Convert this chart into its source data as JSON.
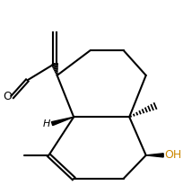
{
  "figsize": [
    2.04,
    2.16
  ],
  "dpi": 100,
  "bg_color": "#ffffff",
  "line_color": "#000000",
  "bond_lw": 1.5,
  "label_O": "O",
  "label_H": "H",
  "label_OH": "OH",
  "label_fontsize": 9,
  "oh_color": "#cc8800"
}
